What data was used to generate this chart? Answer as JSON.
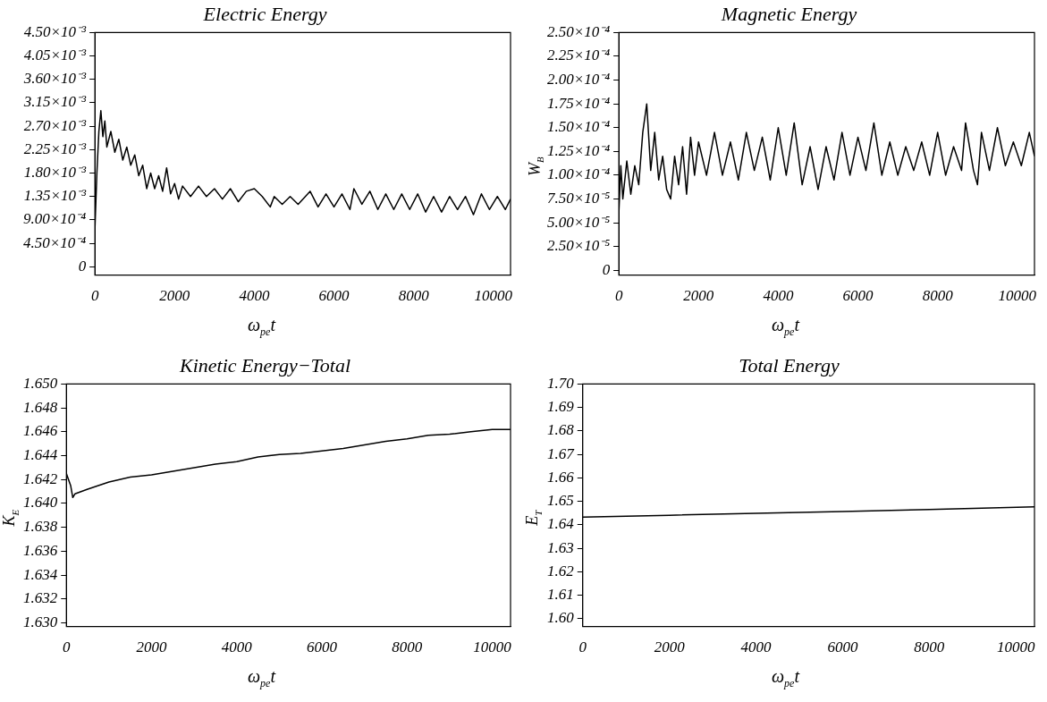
{
  "chart_data": [
    {
      "type": "line",
      "title": "Electric Energy",
      "xlabel": "ω$_{pe}$t",
      "xlim": [
        0,
        10430
      ],
      "xticks": [
        0,
        2000,
        4000,
        6000,
        8000,
        10000
      ],
      "ylim": [
        -0.00016,
        0.0045
      ],
      "yticks": [
        {
          "value": 0,
          "label": "0"
        },
        {
          "value": 0.00045,
          "label": "4.50×10⁻⁴"
        },
        {
          "value": 0.0009,
          "label": "9.00×10⁻⁴"
        },
        {
          "value": 0.00135,
          "label": "1.35×10⁻³"
        },
        {
          "value": 0.0018,
          "label": "1.80×10⁻³"
        },
        {
          "value": 0.00225,
          "label": "2.25×10⁻³"
        },
        {
          "value": 0.0027,
          "label": "2.70×10⁻³"
        },
        {
          "value": 0.00315,
          "label": "3.15×10⁻³"
        },
        {
          "value": 0.0036,
          "label": "3.60×10⁻³"
        },
        {
          "value": 0.00405,
          "label": "4.05×10⁻³"
        },
        {
          "value": 0.0045,
          "label": "4.50×10⁻³"
        }
      ],
      "x": [
        0,
        50,
        100,
        150,
        200,
        250,
        300,
        400,
        500,
        600,
        700,
        800,
        900,
        1000,
        1100,
        1200,
        1300,
        1400,
        1500,
        1600,
        1700,
        1800,
        1900,
        2000,
        2100,
        2200,
        2400,
        2600,
        2800,
        3000,
        3200,
        3400,
        3600,
        3800,
        4000,
        4200,
        4400,
        4500,
        4700,
        4900,
        5100,
        5400,
        5600,
        5800,
        6000,
        6200,
        6400,
        6500,
        6700,
        6900,
        7100,
        7300,
        7500,
        7700,
        7900,
        8100,
        8300,
        8500,
        8700,
        8900,
        9100,
        9300,
        9500,
        9700,
        9900,
        10100,
        10300,
        10430
      ],
      "series": [
        {
          "color": "#000000",
          "values": [
            0.0007,
            0.0018,
            0.0026,
            0.003,
            0.0025,
            0.0028,
            0.0023,
            0.0026,
            0.0022,
            0.00245,
            0.00205,
            0.0023,
            0.00195,
            0.00215,
            0.00175,
            0.00195,
            0.0015,
            0.0018,
            0.0015,
            0.00175,
            0.00145,
            0.0019,
            0.0014,
            0.0016,
            0.0013,
            0.00155,
            0.00135,
            0.00155,
            0.00135,
            0.0015,
            0.0013,
            0.0015,
            0.00125,
            0.00145,
            0.0015,
            0.00135,
            0.00115,
            0.00135,
            0.0012,
            0.00135,
            0.0012,
            0.00145,
            0.00115,
            0.0014,
            0.00115,
            0.0014,
            0.0011,
            0.0015,
            0.0012,
            0.00145,
            0.0011,
            0.0014,
            0.0011,
            0.0014,
            0.0011,
            0.0014,
            0.00105,
            0.00135,
            0.00105,
            0.00135,
            0.0011,
            0.00135,
            0.001,
            0.0014,
            0.0011,
            0.00135,
            0.0011,
            0.0013
          ]
        }
      ]
    },
    {
      "type": "line",
      "title": "Magnetic Energy",
      "xlabel": "ω$_{pe}$t",
      "ylabel": "W$_{B}$",
      "xlim": [
        0,
        10430
      ],
      "xticks": [
        0,
        2000,
        4000,
        6000,
        8000,
        10000
      ],
      "ylim": [
        -5e-06,
        0.00025
      ],
      "yticks": [
        {
          "value": 0,
          "label": "0"
        },
        {
          "value": 2.5e-05,
          "label": "2.50×10⁻⁵"
        },
        {
          "value": 5e-05,
          "label": "5.00×10⁻⁵"
        },
        {
          "value": 7.5e-05,
          "label": "7.50×10⁻⁵"
        },
        {
          "value": 0.0001,
          "label": "1.00×10⁻⁴"
        },
        {
          "value": 0.000125,
          "label": "1.25×10⁻⁴"
        },
        {
          "value": 0.00015,
          "label": "1.50×10⁻⁴"
        },
        {
          "value": 0.000175,
          "label": "1.75×10⁻⁴"
        },
        {
          "value": 0.0002,
          "label": "2.00×10⁻⁴"
        },
        {
          "value": 0.000225,
          "label": "2.25×10⁻⁴"
        },
        {
          "value": 0.00025,
          "label": "2.50×10⁻⁴"
        }
      ],
      "x": [
        0,
        50,
        100,
        200,
        300,
        400,
        500,
        600,
        700,
        800,
        900,
        1000,
        1100,
        1200,
        1300,
        1400,
        1500,
        1600,
        1700,
        1800,
        1900,
        2000,
        2200,
        2400,
        2600,
        2800,
        3000,
        3200,
        3400,
        3600,
        3800,
        4000,
        4200,
        4400,
        4600,
        4800,
        5000,
        5200,
        5400,
        5600,
        5800,
        6000,
        6200,
        6400,
        6600,
        6800,
        7000,
        7200,
        7400,
        7600,
        7800,
        8000,
        8200,
        8400,
        8600,
        8700,
        8900,
        9000,
        9100,
        9300,
        9500,
        9700,
        9900,
        10100,
        10300,
        10430
      ],
      "series": [
        {
          "color": "#000000",
          "values": [
            6e-05,
            0.00011,
            7.5e-05,
            0.000115,
            8e-05,
            0.00011,
            9e-05,
            0.000145,
            0.000175,
            0.000105,
            0.000145,
            9.5e-05,
            0.00012,
            8.5e-05,
            7.5e-05,
            0.00012,
            9e-05,
            0.00013,
            8e-05,
            0.00014,
            0.0001,
            0.000135,
            0.0001,
            0.000145,
            0.0001,
            0.000135,
            9.5e-05,
            0.000145,
            0.000105,
            0.00014,
            9.5e-05,
            0.00015,
            0.0001,
            0.000155,
            9e-05,
            0.00013,
            8.5e-05,
            0.00013,
            9.5e-05,
            0.000145,
            0.0001,
            0.00014,
            0.000105,
            0.000155,
            0.0001,
            0.000135,
            0.0001,
            0.00013,
            0.000105,
            0.000135,
            0.0001,
            0.000145,
            0.0001,
            0.00013,
            0.000105,
            0.000155,
            0.000105,
            9e-05,
            0.000145,
            0.000105,
            0.00015,
            0.00011,
            0.000135,
            0.00011,
            0.000145,
            0.00012
          ]
        }
      ]
    },
    {
      "type": "line",
      "title": "Kinetic Energy−Total",
      "xlabel": "ω$_{pe}$t",
      "ylabel": "K$_{E}$",
      "xlim": [
        0,
        10430
      ],
      "xticks": [
        0,
        2000,
        4000,
        6000,
        8000,
        10000
      ],
      "ylim": [
        1.6297,
        1.65
      ],
      "yticks": [
        {
          "value": 1.63,
          "label": "1.630"
        },
        {
          "value": 1.632,
          "label": "1.632"
        },
        {
          "value": 1.634,
          "label": "1.634"
        },
        {
          "value": 1.636,
          "label": "1.636"
        },
        {
          "value": 1.638,
          "label": "1.638"
        },
        {
          "value": 1.64,
          "label": "1.640"
        },
        {
          "value": 1.642,
          "label": "1.642"
        },
        {
          "value": 1.644,
          "label": "1.644"
        },
        {
          "value": 1.646,
          "label": "1.646"
        },
        {
          "value": 1.648,
          "label": "1.648"
        },
        {
          "value": 1.65,
          "label": "1.650"
        }
      ],
      "x": [
        0,
        100,
        150,
        200,
        500,
        1000,
        1500,
        2000,
        2500,
        3000,
        3500,
        4000,
        4500,
        5000,
        5500,
        6000,
        6500,
        7000,
        7500,
        8000,
        8500,
        9000,
        9500,
        10000,
        10430
      ],
      "series": [
        {
          "color": "#000000",
          "values": [
            1.6425,
            1.6415,
            1.6405,
            1.6408,
            1.6412,
            1.6418,
            1.6422,
            1.6424,
            1.6427,
            1.643,
            1.6433,
            1.6435,
            1.6439,
            1.6441,
            1.6442,
            1.6444,
            1.6446,
            1.6449,
            1.6452,
            1.6454,
            1.6457,
            1.6458,
            1.646,
            1.6462,
            1.6462
          ]
        }
      ]
    },
    {
      "type": "line",
      "title": "Total Energy",
      "xlabel": "ω$_{pe}$t",
      "ylabel": "E$_{T}$",
      "xlim": [
        0,
        10430
      ],
      "xticks": [
        0,
        2000,
        4000,
        6000,
        8000,
        10000
      ],
      "ylim": [
        1.5967,
        1.7
      ],
      "yticks": [
        {
          "value": 1.6,
          "label": "1.60"
        },
        {
          "value": 1.61,
          "label": "1.61"
        },
        {
          "value": 1.62,
          "label": "1.62"
        },
        {
          "value": 1.63,
          "label": "1.63"
        },
        {
          "value": 1.64,
          "label": "1.64"
        },
        {
          "value": 1.65,
          "label": "1.65"
        },
        {
          "value": 1.66,
          "label": "1.66"
        },
        {
          "value": 1.67,
          "label": "1.67"
        },
        {
          "value": 1.68,
          "label": "1.68"
        },
        {
          "value": 1.69,
          "label": "1.69"
        },
        {
          "value": 1.7,
          "label": "1.70"
        }
      ],
      "x": [
        0,
        2000,
        4000,
        6000,
        8000,
        10430
      ],
      "series": [
        {
          "color": "#000000",
          "values": [
            1.6433,
            1.6441,
            1.6449,
            1.6457,
            1.6465,
            1.6477
          ]
        }
      ]
    }
  ]
}
